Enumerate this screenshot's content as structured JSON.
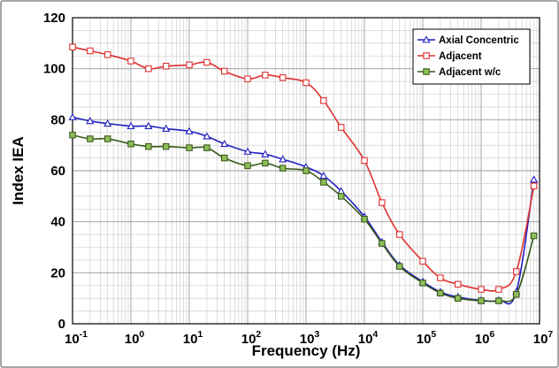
{
  "chart_data": {
    "type": "line",
    "xlabel": "Frequency (Hz)",
    "ylabel": "Index IEA",
    "x_scale": "log",
    "xlim": [
      0.1,
      10000000
    ],
    "ylim": [
      0,
      120
    ],
    "y_ticks": [
      0,
      20,
      40,
      60,
      80,
      100,
      120
    ],
    "x_ticks": [
      {
        "base": "10",
        "exp": "-1",
        "value": 0.1
      },
      {
        "base": "10",
        "exp": "0",
        "value": 1
      },
      {
        "base": "10",
        "exp": "1",
        "value": 10
      },
      {
        "base": "10",
        "exp": "2",
        "value": 100
      },
      {
        "base": "10",
        "exp": "3",
        "value": 1000
      },
      {
        "base": "10",
        "exp": "4",
        "value": 10000
      },
      {
        "base": "10",
        "exp": "5",
        "value": 100000
      },
      {
        "base": "10",
        "exp": "6",
        "value": 1000000
      },
      {
        "base": "10",
        "exp": "7",
        "value": 10000000
      }
    ],
    "grid": true,
    "legend_position": "top-right",
    "series": [
      {
        "name": "Axial Concentric",
        "color": "#1f1fbf",
        "marker": "triangle",
        "x": [
          0.1,
          0.2,
          0.4,
          1,
          2,
          4,
          10,
          20,
          40,
          100,
          200,
          400,
          1000,
          2000,
          4000,
          10000,
          20000,
          40000,
          100000,
          200000,
          400000,
          1000000,
          2000000,
          4000000,
          8000000
        ],
        "y": [
          81,
          79.5,
          78.5,
          77.5,
          77.5,
          76.5,
          75.5,
          73.5,
          70.5,
          67.5,
          66.5,
          64.5,
          61.5,
          58,
          52,
          42,
          32,
          23,
          16.5,
          12.5,
          10.5,
          9.2,
          9.2,
          12.5,
          56.5
        ]
      },
      {
        "name": "Adjacent",
        "color": "#e03030",
        "marker": "square",
        "x": [
          0.1,
          0.2,
          0.4,
          1,
          2,
          4,
          10,
          20,
          40,
          100,
          200,
          400,
          1000,
          2000,
          4000,
          10000,
          20000,
          40000,
          100000,
          200000,
          400000,
          1000000,
          2000000,
          4000000,
          8000000
        ],
        "y": [
          108.5,
          107,
          105.5,
          103,
          100,
          101,
          101.5,
          102.5,
          99,
          96,
          97.5,
          96.5,
          94.5,
          87.5,
          77,
          64,
          47.5,
          35,
          24.5,
          18,
          15.5,
          13.5,
          13.5,
          20.5,
          54
        ]
      },
      {
        "name": "Adjacent w/c",
        "color": "#3a5a1a",
        "fill": "#8fbf5a",
        "marker": "square",
        "x": [
          0.1,
          0.2,
          0.4,
          1,
          2,
          4,
          10,
          20,
          40,
          100,
          200,
          400,
          1000,
          2000,
          4000,
          10000,
          20000,
          40000,
          100000,
          200000,
          400000,
          1000000,
          2000000,
          4000000,
          8000000
        ],
        "y": [
          74,
          72.5,
          72.5,
          70.5,
          69.5,
          69.5,
          69,
          69,
          65,
          62,
          63,
          61,
          60,
          55.5,
          50,
          41,
          31.5,
          22.5,
          16,
          12,
          10,
          9,
          9,
          11.5,
          34.5
        ]
      }
    ]
  }
}
